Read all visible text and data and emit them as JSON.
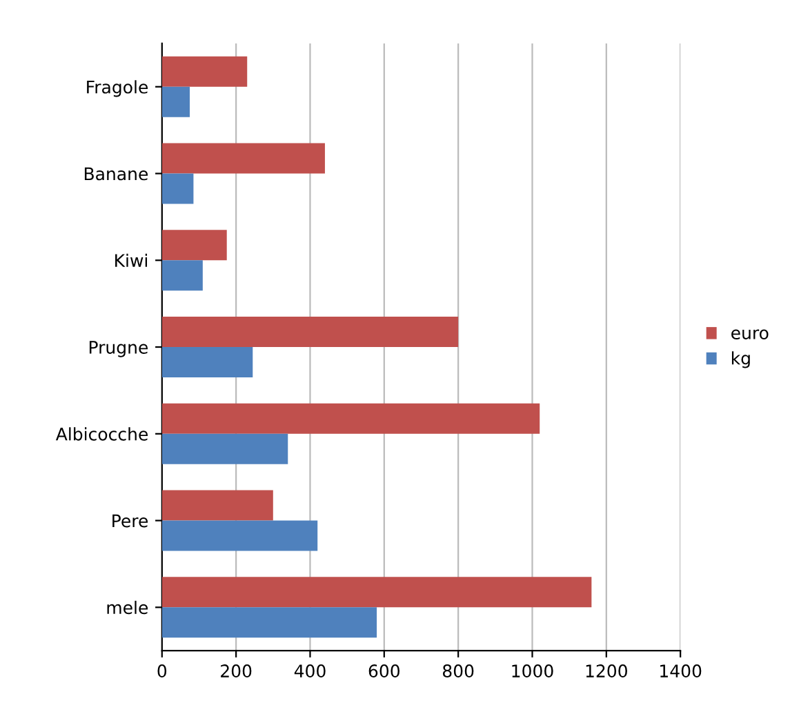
{
  "chart_data": {
    "type": "bar",
    "orientation": "horizontal",
    "categories": [
      "Fragole",
      "Banane",
      "Kiwi",
      "Prugne",
      "Albicocche",
      "Pere",
      "mele"
    ],
    "series": [
      {
        "name": "euro",
        "color": "#c0504d",
        "values": [
          230,
          440,
          175,
          800,
          1020,
          300,
          1160
        ]
      },
      {
        "name": "kg",
        "color": "#4f81bd",
        "values": [
          75,
          85,
          110,
          245,
          340,
          420,
          580
        ]
      }
    ],
    "xlim": [
      0,
      1400
    ],
    "xticks": [
      0,
      200,
      400,
      600,
      800,
      1000,
      1200,
      1400
    ],
    "grid": "x",
    "legend": "right"
  }
}
